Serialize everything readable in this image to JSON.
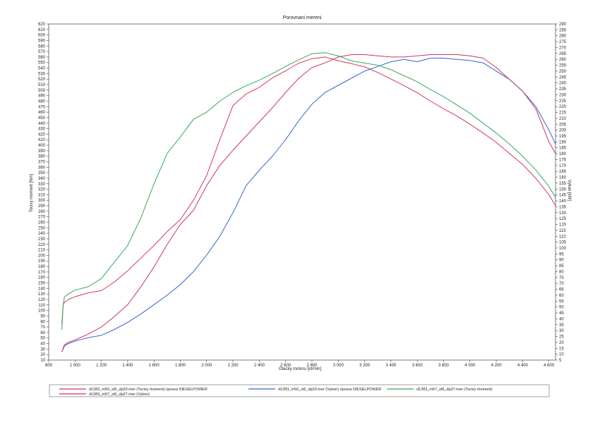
{
  "chart_data": {
    "type": "line",
    "title": "Porovnani mereni",
    "xlabel": "Otacky motoru [ot/min]",
    "ylabel": "Tocivy moment [Nm]",
    "y2label": "Vykon [kW]",
    "xlim": [
      800,
      4650
    ],
    "ylim": [
      10,
      620
    ],
    "y2lim": [
      5,
      290
    ],
    "x_ticks": [
      800,
      1000,
      1200,
      1400,
      1600,
      1800,
      2000,
      2200,
      2400,
      2600,
      2800,
      3000,
      3200,
      3400,
      3600,
      3800,
      4000,
      4200,
      4400,
      4600
    ],
    "x_tick_labels": [
      "800",
      "1 000",
      "1 200",
      "1 400",
      "1 600",
      "1 800",
      "2 000",
      "2 200",
      "2 400",
      "2 600",
      "2 800",
      "3 000",
      "3 200",
      "3 400",
      "3 600",
      "3 800",
      "4 000",
      "4 200",
      "4 400",
      "4 600"
    ],
    "y_tick_step": 10,
    "y2_tick_step": 5,
    "grid": false,
    "legend_position": "bottom",
    "series": [
      {
        "name": "d1283_m50_st5_dp23.mer  (Tocivy moment)  úprava DIESELPOWER",
        "axis": "left",
        "color": "#d6336c",
        "x": [
          900,
          910,
          920,
          950,
          1000,
          1100,
          1200,
          1300,
          1400,
          1500,
          1600,
          1700,
          1800,
          1900,
          2000,
          2100,
          2200,
          2300,
          2400,
          2500,
          2600,
          2700,
          2800,
          2900,
          3000,
          3100,
          3200,
          3300,
          3400,
          3500,
          3600,
          3700,
          3800,
          3900,
          4000,
          4100,
          4200,
          4300,
          4400,
          4500,
          4600,
          4650
        ],
        "y": [
          75,
          110,
          115,
          120,
          125,
          132,
          136,
          152,
          172,
          195,
          218,
          243,
          265,
          300,
          345,
          410,
          472,
          493,
          505,
          522,
          535,
          549,
          557,
          560,
          553,
          548,
          542,
          532,
          520,
          508,
          495,
          480,
          466,
          453,
          438,
          422,
          405,
          385,
          365,
          340,
          310,
          290
        ]
      },
      {
        "name": "d1283_m50_st5_dp23.mer  (Vykon)  úprava DIESELPOWER",
        "axis": "right",
        "color": "#3366cc",
        "x": [
          900,
          920,
          950,
          1000,
          1100,
          1200,
          1300,
          1400,
          1500,
          1600,
          1700,
          1800,
          1900,
          2000,
          2100,
          2200,
          2300,
          2400,
          2500,
          2600,
          2700,
          2800,
          2900,
          3000,
          3100,
          3200,
          3300,
          3400,
          3500,
          3600,
          3700,
          3800,
          3900,
          4000,
          4100,
          4200,
          4300,
          4400,
          4500,
          4600,
          4650
        ],
        "y": [
          12,
          17,
          19,
          21,
          24,
          26,
          31,
          37,
          44,
          52,
          60,
          69,
          80,
          94,
          110,
          130,
          153,
          166,
          178,
          192,
          208,
          222,
          232,
          238,
          244,
          250,
          254,
          258,
          260,
          258,
          261,
          261,
          260,
          259,
          257,
          250,
          243,
          233,
          220,
          200,
          188
        ]
      },
      {
        "name": "d1283_m57_st5_dp27.mer  (Tocivy moment)",
        "axis": "left",
        "color": "#33aa55",
        "x": [
          900,
          910,
          920,
          950,
          1000,
          1100,
          1200,
          1300,
          1400,
          1500,
          1600,
          1700,
          1800,
          1900,
          2000,
          2100,
          2200,
          2300,
          2400,
          2500,
          2600,
          2700,
          2800,
          2900,
          3000,
          3100,
          3200,
          3300,
          3400,
          3500,
          3600,
          3700,
          3800,
          3900,
          4000,
          4100,
          4200,
          4300,
          4400,
          4500,
          4600,
          4650
        ],
        "y": [
          65,
          110,
          125,
          130,
          137,
          143,
          158,
          188,
          218,
          268,
          330,
          385,
          415,
          447,
          460,
          480,
          496,
          508,
          518,
          530,
          543,
          555,
          566,
          568,
          562,
          553,
          549,
          545,
          537,
          526,
          515,
          501,
          488,
          473,
          458,
          440,
          422,
          402,
          380,
          355,
          325,
          305
        ]
      },
      {
        "name": "d1283_m57_st5_dp27.mer  (Vykon)",
        "axis": "right",
        "color": "#cc3366",
        "x": [
          900,
          920,
          950,
          1000,
          1100,
          1200,
          1300,
          1400,
          1500,
          1600,
          1700,
          1800,
          1900,
          2000,
          2100,
          2200,
          2300,
          2400,
          2500,
          2600,
          2700,
          2800,
          2900,
          3000,
          3100,
          3200,
          3300,
          3400,
          3500,
          3600,
          3700,
          3800,
          3900,
          4000,
          4100,
          4200,
          4300,
          4400,
          4500,
          4600,
          4650
        ],
        "y": [
          12,
          18,
          20,
          22,
          27,
          33,
          42,
          52,
          67,
          84,
          103,
          120,
          132,
          153,
          170,
          183,
          195,
          207,
          219,
          232,
          244,
          253,
          257,
          262,
          264,
          264,
          263,
          262,
          262,
          263,
          264,
          264,
          264,
          263,
          261,
          253,
          243,
          233,
          218,
          190,
          180
        ]
      }
    ]
  }
}
